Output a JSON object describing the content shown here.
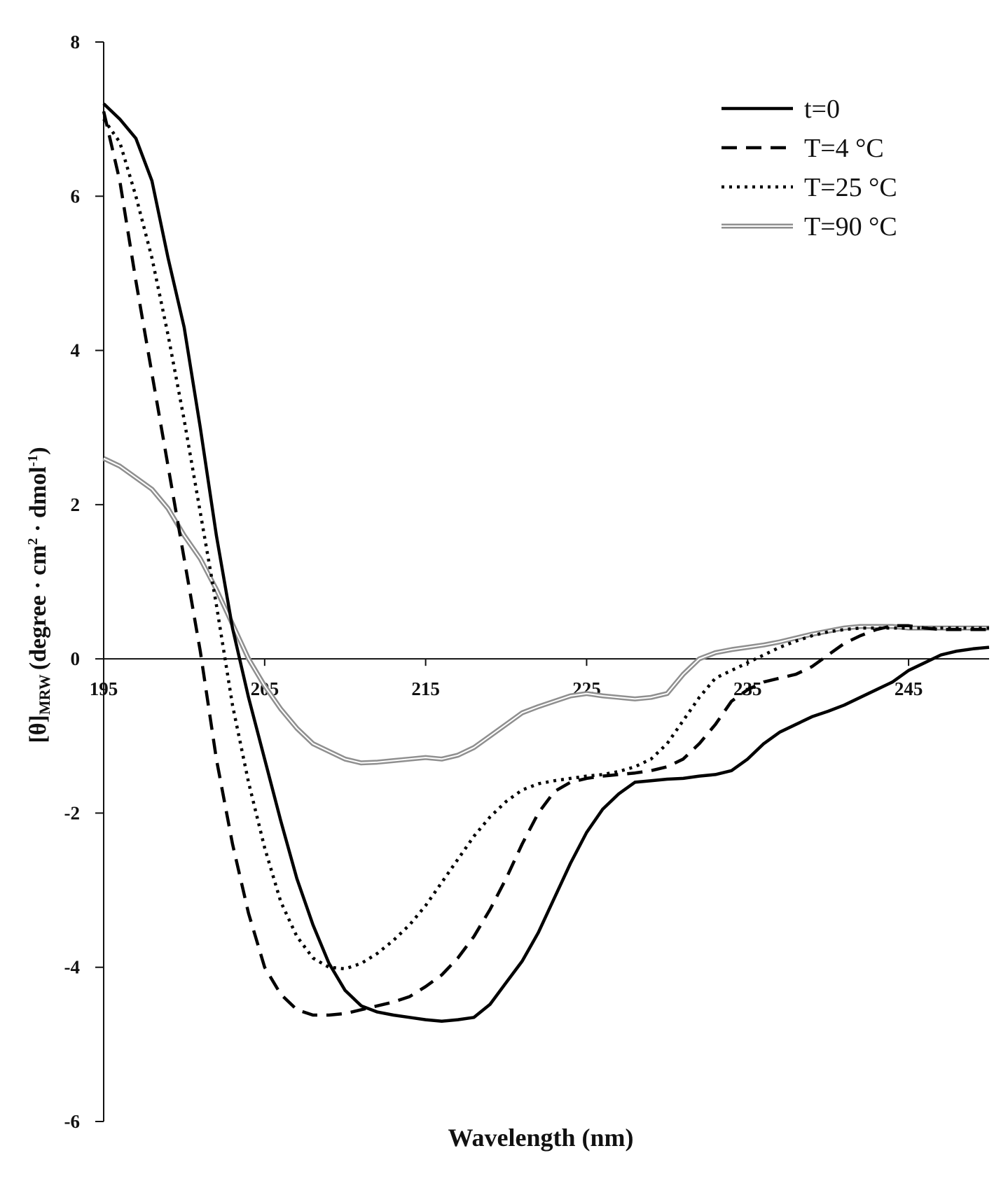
{
  "chart_data": {
    "type": "line",
    "title": "",
    "xlabel": "Wavelength (nm)",
    "ylabel": {
      "prefix": "[θ]",
      "subscript": "MRW",
      "unit_a": "(degree · cm",
      "unit_a_sup": "2",
      "unit_b": " · dmol",
      "unit_b_sup": "-1",
      "unit_c": ")"
    },
    "xlim": [
      195,
      250
    ],
    "ylim": [
      -6,
      8
    ],
    "xticks": [
      195,
      205,
      215,
      225,
      235,
      245
    ],
    "xtick_labels": [
      "195",
      "205",
      "215",
      "225",
      "235",
      "245"
    ],
    "yticks": [
      8,
      6,
      4,
      2,
      0,
      -2,
      -4,
      -6
    ],
    "ytick_labels": [
      "8",
      "6",
      "4",
      "2",
      "0",
      "-2",
      "-4",
      "-6"
    ],
    "legend_position": "top-right",
    "colors": {
      "axis": "#111111",
      "black": "#000000",
      "gray": "#8f8f8f"
    },
    "series": [
      {
        "name": "t=0",
        "style": "solid",
        "x": [
          195,
          196,
          197,
          198,
          199,
          200,
          201,
          202,
          203,
          204,
          205,
          206,
          207,
          208,
          209,
          210,
          211,
          212,
          213,
          214,
          215,
          216,
          217,
          218,
          219,
          220,
          221,
          222,
          223,
          224,
          225,
          226,
          227,
          228,
          229,
          230,
          231,
          232,
          233,
          234,
          235,
          236,
          237,
          238,
          239,
          240,
          241,
          242,
          243,
          244,
          245,
          246,
          247,
          248,
          249,
          250
        ],
        "y": [
          7.2,
          7.0,
          6.75,
          6.2,
          5.2,
          4.3,
          3.0,
          1.6,
          0.4,
          -0.5,
          -1.3,
          -2.1,
          -2.85,
          -3.45,
          -3.95,
          -4.3,
          -4.5,
          -4.58,
          -4.62,
          -4.65,
          -4.68,
          -4.7,
          -4.68,
          -4.65,
          -4.48,
          -4.2,
          -3.92,
          -3.55,
          -3.1,
          -2.65,
          -2.25,
          -1.95,
          -1.75,
          -1.6,
          -1.58,
          -1.56,
          -1.55,
          -1.52,
          -1.5,
          -1.45,
          -1.3,
          -1.1,
          -0.95,
          -0.85,
          -0.75,
          -0.68,
          -0.6,
          -0.5,
          -0.4,
          -0.3,
          -0.15,
          -0.05,
          0.05,
          0.1,
          0.13,
          0.15
        ]
      },
      {
        "name": "T=4 °C",
        "style": "dashed",
        "x": [
          195,
          196,
          197,
          198,
          199,
          200,
          201,
          202,
          203,
          204,
          205,
          206,
          207,
          208,
          209,
          210,
          211,
          212,
          213,
          214,
          215,
          216,
          217,
          218,
          219,
          220,
          221,
          222,
          223,
          224,
          225,
          226,
          227,
          228,
          229,
          230,
          231,
          232,
          233,
          234,
          235,
          236,
          237,
          238,
          239,
          240,
          241,
          242,
          243,
          244,
          245,
          246,
          247,
          248,
          249,
          250
        ],
        "y": [
          7.1,
          6.2,
          4.9,
          3.7,
          2.5,
          1.3,
          0.1,
          -1.3,
          -2.4,
          -3.3,
          -4.0,
          -4.35,
          -4.55,
          -4.62,
          -4.62,
          -4.6,
          -4.55,
          -4.5,
          -4.45,
          -4.38,
          -4.25,
          -4.1,
          -3.88,
          -3.6,
          -3.25,
          -2.85,
          -2.4,
          -2.0,
          -1.72,
          -1.6,
          -1.55,
          -1.52,
          -1.5,
          -1.48,
          -1.45,
          -1.4,
          -1.3,
          -1.1,
          -0.85,
          -0.55,
          -0.4,
          -0.3,
          -0.25,
          -0.2,
          -0.1,
          0.05,
          0.2,
          0.3,
          0.38,
          0.43,
          0.43,
          0.4,
          0.38,
          0.38,
          0.38,
          0.38
        ]
      },
      {
        "name": "T=25 °C",
        "style": "dotted",
        "x": [
          195,
          196,
          197,
          198,
          199,
          200,
          201,
          202,
          203,
          204,
          205,
          206,
          207,
          208,
          209,
          210,
          211,
          212,
          213,
          214,
          215,
          216,
          217,
          218,
          219,
          220,
          221,
          222,
          223,
          224,
          225,
          226,
          227,
          228,
          229,
          230,
          231,
          232,
          233,
          234,
          235,
          236,
          237,
          238,
          239,
          240,
          241,
          242,
          243,
          244,
          245,
          246,
          247,
          248,
          249,
          250
        ],
        "y": [
          7.0,
          6.7,
          6.0,
          5.2,
          4.2,
          3.1,
          1.9,
          0.7,
          -0.6,
          -1.6,
          -2.45,
          -3.15,
          -3.6,
          -3.88,
          -4.0,
          -4.02,
          -3.95,
          -3.82,
          -3.65,
          -3.45,
          -3.2,
          -2.9,
          -2.6,
          -2.3,
          -2.05,
          -1.85,
          -1.7,
          -1.62,
          -1.58,
          -1.55,
          -1.52,
          -1.5,
          -1.46,
          -1.4,
          -1.3,
          -1.1,
          -0.8,
          -0.5,
          -0.25,
          -0.15,
          -0.05,
          0.05,
          0.15,
          0.23,
          0.3,
          0.35,
          0.38,
          0.4,
          0.4,
          0.4,
          0.4,
          0.4,
          0.4,
          0.4,
          0.4,
          0.4
        ]
      },
      {
        "name": "T=90 °C",
        "style": "double",
        "x": [
          195,
          196,
          197,
          198,
          199,
          200,
          201,
          202,
          203,
          204,
          205,
          206,
          207,
          208,
          209,
          210,
          211,
          212,
          213,
          214,
          215,
          216,
          217,
          218,
          219,
          220,
          221,
          222,
          223,
          224,
          225,
          226,
          227,
          228,
          229,
          230,
          231,
          232,
          233,
          234,
          235,
          236,
          237,
          238,
          239,
          240,
          241,
          242,
          243,
          244,
          245,
          246,
          247,
          248,
          249,
          250
        ],
        "y": [
          2.6,
          2.5,
          2.35,
          2.2,
          1.95,
          1.6,
          1.3,
          0.9,
          0.45,
          0.0,
          -0.35,
          -0.65,
          -0.9,
          -1.1,
          -1.2,
          -1.3,
          -1.35,
          -1.34,
          -1.32,
          -1.3,
          -1.28,
          -1.3,
          -1.25,
          -1.15,
          -1.0,
          -0.85,
          -0.7,
          -0.62,
          -0.55,
          -0.48,
          -0.45,
          -0.48,
          -0.5,
          -0.52,
          -0.5,
          -0.45,
          -0.2,
          0.0,
          0.08,
          0.12,
          0.15,
          0.18,
          0.22,
          0.27,
          0.32,
          0.36,
          0.4,
          0.42,
          0.42,
          0.42,
          0.4,
          0.4,
          0.4,
          0.4,
          0.4,
          0.4
        ]
      }
    ]
  }
}
